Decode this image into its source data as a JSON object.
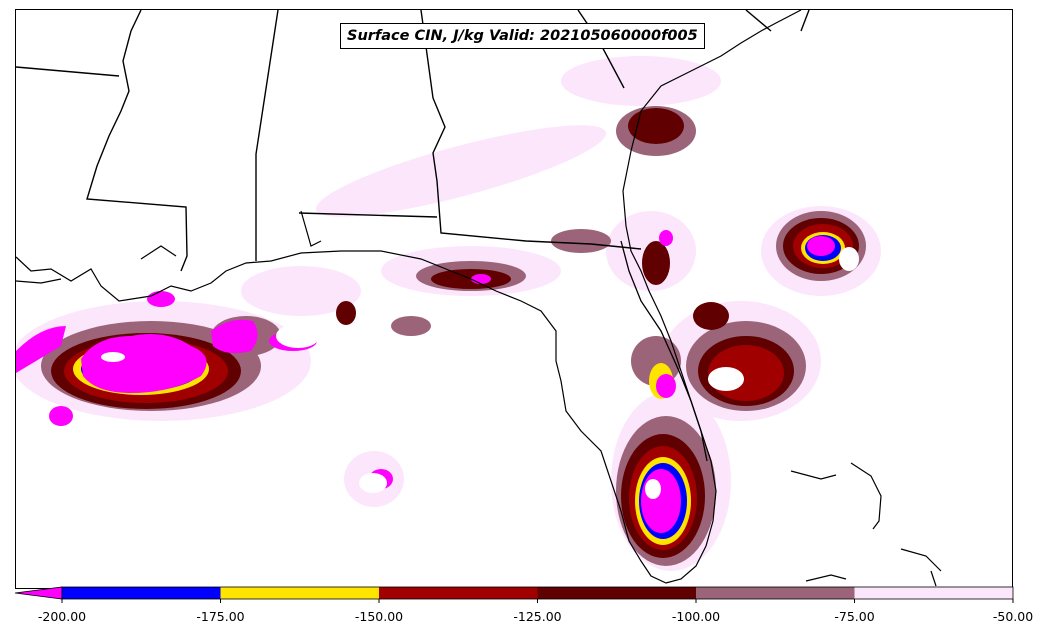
{
  "title": "Surface CIN, J/kg Valid: 202105060000f005",
  "legend": {
    "ticks": [
      "-200.00",
      "-175.00",
      "-150.00",
      "-125.00",
      "-100.00",
      "-75.00",
      "-50.00"
    ],
    "bins": [
      {
        "from": -200,
        "to": -175,
        "color": "#0000ff"
      },
      {
        "from": -175,
        "to": -150,
        "color": "#ffe400"
      },
      {
        "from": -150,
        "to": -125,
        "color": "#a00000"
      },
      {
        "from": -125,
        "to": -100,
        "color": "#600000"
      },
      {
        "from": -100,
        "to": -75,
        "color": "#9b6478"
      },
      {
        "from": -75,
        "to": -50,
        "color": "#fce6fc"
      }
    ],
    "under_color": "#ff00ff"
  }
}
